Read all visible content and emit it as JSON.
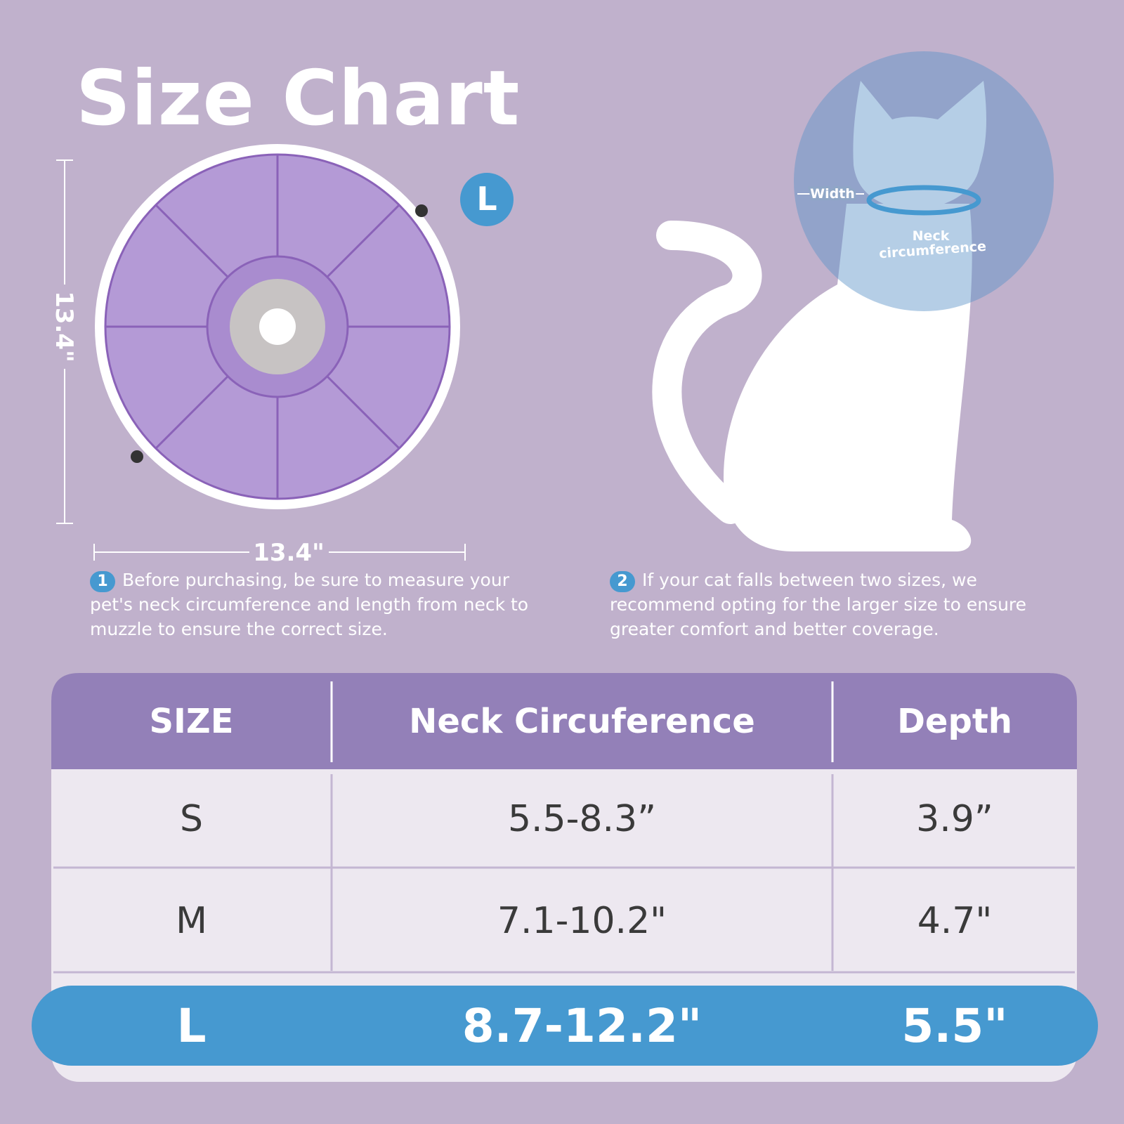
{
  "header": {
    "title": "Size Chart"
  },
  "product": {
    "height_label": "13.4\"",
    "width_label": "13.4\"",
    "size_badge": "L"
  },
  "cat_diagram": {
    "width_label": "Width",
    "neck_label": [
      "Neck",
      "circumference"
    ]
  },
  "notes": [
    {
      "number": "1",
      "text": "Before purchasing, be sure to measure your pet's neck circumference and length from neck to muzzle to ensure the correct size."
    },
    {
      "number": "2",
      "text": "If your cat falls between two sizes, we recommend opting for the larger size to ensure greater comfort and better coverage."
    }
  ],
  "table": {
    "headers": [
      "SIZE",
      "Neck Circuference",
      "Depth"
    ],
    "rows": [
      [
        "S",
        "5.5-8.3”",
        "3.9”"
      ],
      [
        "M",
        "7.1-10.2\"",
        "4.7\""
      ],
      [
        "L",
        "8.7-12.2\"",
        "5.5\""
      ]
    ]
  }
}
